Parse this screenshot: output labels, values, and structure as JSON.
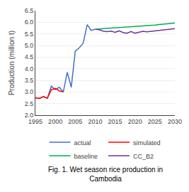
{
  "chart_data": {
    "type": "line",
    "ylabel": "Production (million t)",
    "xlim": [
      1995,
      2030
    ],
    "ylim": [
      2.0,
      6.5
    ],
    "xticks": [
      1995,
      2000,
      2005,
      2010,
      2015,
      2020,
      2025,
      2030
    ],
    "yticks": [
      {
        "value": 2.0,
        "label": "2.0"
      },
      {
        "value": 2.5,
        "label": "2.5"
      },
      {
        "value": 3.0,
        "label": "3.0"
      },
      {
        "value": 3.5,
        "label": "3.5"
      },
      {
        "value": 4.0,
        "label": "4.0"
      },
      {
        "value": 4.5,
        "label": "4.5"
      },
      {
        "value": 5.0,
        "label": "5.0"
      },
      {
        "value": 5.5,
        "label": "5.5"
      },
      {
        "value": 6.0,
        "label": "6.0"
      },
      {
        "value": 6.5,
        "label": "6.5"
      }
    ],
    "grid": "y",
    "legend": "bottom",
    "annotations": [
      "Fig. 1. Wet season rice production in\nCambodia"
    ],
    "series": [
      {
        "name": "actual",
        "color": "#4472C4",
        "x": [
          1995,
          1996,
          1997,
          1998,
          1999,
          2000,
          2001,
          2002,
          2003,
          2004,
          2005,
          2006,
          2007,
          2008,
          2009,
          2010
        ],
        "values": [
          2.75,
          2.72,
          2.8,
          2.73,
          3.25,
          3.1,
          3.2,
          3.0,
          3.85,
          3.2,
          4.75,
          4.9,
          5.1,
          5.9,
          5.65,
          5.7
        ]
      },
      {
        "name": "simulated",
        "color": "#FF0000",
        "x": [
          1995,
          1996,
          1997,
          1998,
          1999,
          2000,
          2001,
          2002
        ],
        "values": [
          2.75,
          2.72,
          2.8,
          2.73,
          3.1,
          3.15,
          3.05,
          3.0
        ]
      },
      {
        "name": "baseline",
        "color": "#00B050",
        "x": [
          2010,
          2011,
          2012,
          2013,
          2014,
          2015,
          2016,
          2017,
          2018,
          2019,
          2020,
          2021,
          2022,
          2023,
          2024,
          2025,
          2026,
          2027,
          2028,
          2029,
          2030
        ],
        "values": [
          5.7,
          5.72,
          5.73,
          5.74,
          5.75,
          5.76,
          5.77,
          5.78,
          5.79,
          5.8,
          5.82,
          5.83,
          5.85,
          5.86,
          5.87,
          5.88,
          5.9,
          5.91,
          5.93,
          5.95,
          5.97
        ]
      },
      {
        "name": "CC_B2",
        "color": "#7030A0",
        "x": [
          2010,
          2011,
          2012,
          2013,
          2014,
          2015,
          2016,
          2017,
          2018,
          2019,
          2020,
          2021,
          2022,
          2023,
          2024,
          2025,
          2026,
          2027,
          2028,
          2029,
          2030
        ],
        "values": [
          5.7,
          5.68,
          5.62,
          5.6,
          5.62,
          5.57,
          5.63,
          5.56,
          5.53,
          5.6,
          5.53,
          5.57,
          5.61,
          5.59,
          5.61,
          5.62,
          5.65,
          5.66,
          5.68,
          5.7,
          5.73
        ]
      }
    ]
  }
}
